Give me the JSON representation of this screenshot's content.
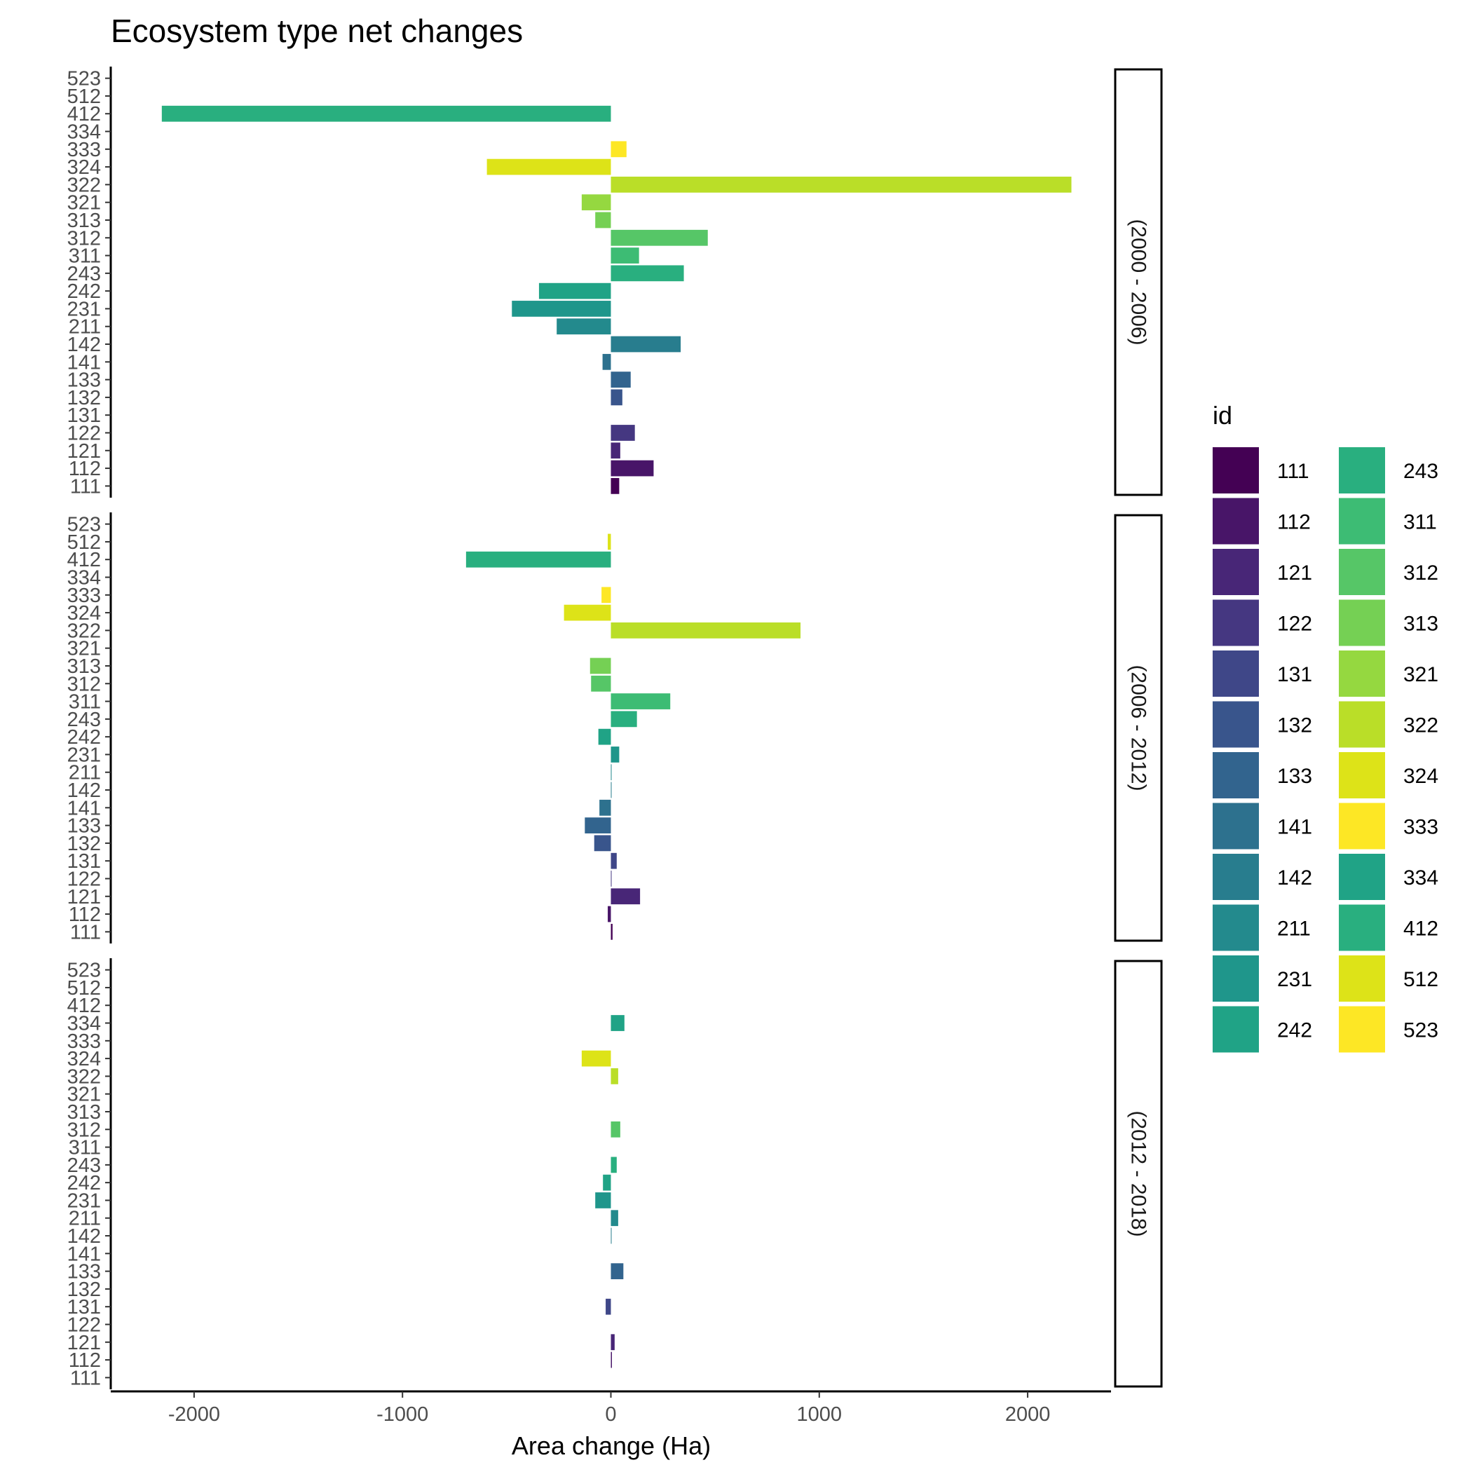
{
  "chart_data": {
    "type": "bar",
    "orientation": "horizontal",
    "title": "Ecosystem type net changes",
    "xlabel": "Area change (Ha)",
    "ylabel": "",
    "xlim": [
      -2400,
      2400
    ],
    "x_ticks": [
      -2000,
      -1000,
      0,
      1000,
      2000
    ],
    "categories": [
      "111",
      "112",
      "121",
      "122",
      "131",
      "132",
      "133",
      "141",
      "142",
      "211",
      "231",
      "242",
      "243",
      "311",
      "312",
      "313",
      "321",
      "322",
      "324",
      "333",
      "334",
      "412",
      "512",
      "523"
    ],
    "grid": false,
    "legend": {
      "title": "id",
      "placement": "right",
      "columns": 2,
      "items": [
        {
          "label": "111",
          "color": "#440154"
        },
        {
          "label": "112",
          "color": "#481568"
        },
        {
          "label": "121",
          "color": "#482677"
        },
        {
          "label": "122",
          "color": "#453781"
        },
        {
          "label": "131",
          "color": "#3f4788"
        },
        {
          "label": "132",
          "color": "#39558c"
        },
        {
          "label": "133",
          "color": "#32648e"
        },
        {
          "label": "141",
          "color": "#2d718e"
        },
        {
          "label": "142",
          "color": "#287d8e"
        },
        {
          "label": "211",
          "color": "#238a8d"
        },
        {
          "label": "231",
          "color": "#1f968b"
        },
        {
          "label": "242",
          "color": "#20a386"
        },
        {
          "label": "243",
          "color": "#29af7f"
        },
        {
          "label": "311",
          "color": "#3dbc74"
        },
        {
          "label": "312",
          "color": "#56c667"
        },
        {
          "label": "313",
          "color": "#75d054"
        },
        {
          "label": "321",
          "color": "#95d840"
        },
        {
          "label": "322",
          "color": "#bade28"
        },
        {
          "label": "324",
          "color": "#dde318"
        },
        {
          "label": "333",
          "color": "#fde725"
        },
        {
          "label": "334",
          "color": "#20a386"
        },
        {
          "label": "412",
          "color": "#29af7f"
        },
        {
          "label": "512",
          "color": "#dde318"
        },
        {
          "label": "523",
          "color": "#fde725"
        }
      ]
    },
    "facets": [
      {
        "label": "(2000 - 2006)",
        "values": {
          "111": 40,
          "112": 205,
          "121": 45,
          "122": 115,
          "131": 0,
          "132": 55,
          "133": 95,
          "141": -40,
          "142": 335,
          "211": -260,
          "231": -475,
          "242": -345,
          "243": 350,
          "311": 135,
          "312": 465,
          "313": -75,
          "321": -140,
          "322": 2210,
          "324": -595,
          "333": 75,
          "334": 0,
          "412": -2155,
          "512": 0,
          "523": 0
        }
      },
      {
        "label": "(2006 - 2012)",
        "values": {
          "111": 8,
          "112": -15,
          "121": 140,
          "122": 2,
          "131": 28,
          "132": -80,
          "133": -125,
          "141": -55,
          "142": 2,
          "211": 2,
          "231": 40,
          "242": -60,
          "243": 125,
          "311": 285,
          "312": -95,
          "313": -100,
          "321": 0,
          "322": 910,
          "324": -225,
          "333": -45,
          "334": 0,
          "412": -695,
          "512": -15,
          "523": 0
        }
      },
      {
        "label": "(2012 - 2018)",
        "values": {
          "111": 0,
          "112": 5,
          "121": 18,
          "122": 0,
          "131": -25,
          "132": 0,
          "133": 60,
          "141": 0,
          "142": 2,
          "211": 35,
          "231": -75,
          "242": -38,
          "243": 28,
          "311": 0,
          "312": 45,
          "313": 0,
          "321": 0,
          "322": 35,
          "324": -140,
          "333": 0,
          "334": 65,
          "412": 0,
          "512": 0,
          "523": 0
        }
      }
    ]
  }
}
